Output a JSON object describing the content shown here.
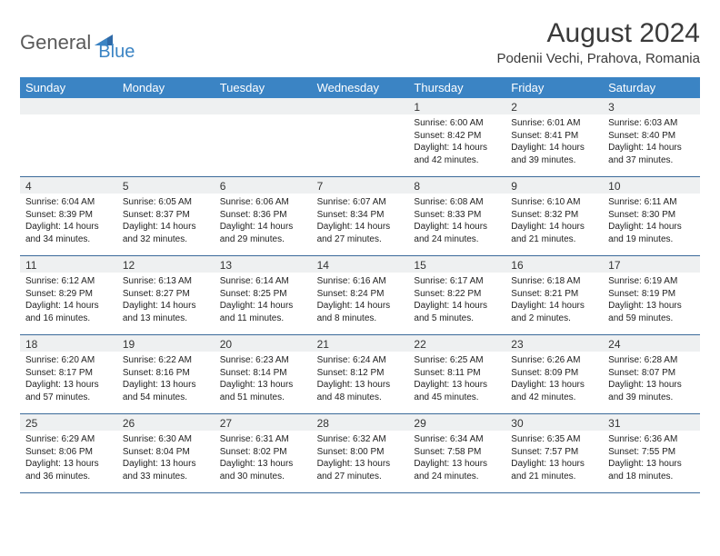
{
  "logo": {
    "text1": "General",
    "text2": "Blue"
  },
  "title": "August 2024",
  "location": "Podenii Vechi, Prahova, Romania",
  "colors": {
    "header_bg": "#3b84c4",
    "header_text": "#ffffff",
    "daynum_bg": "#eef0f1",
    "week_border": "#3b6a9a",
    "logo_gray": "#5a5a5a",
    "logo_blue": "#3b84c4",
    "title_color": "#3a3a3a"
  },
  "day_names": [
    "Sunday",
    "Monday",
    "Tuesday",
    "Wednesday",
    "Thursday",
    "Friday",
    "Saturday"
  ],
  "weeks": [
    [
      {
        "n": "",
        "sr": "",
        "ss": "",
        "dl": ""
      },
      {
        "n": "",
        "sr": "",
        "ss": "",
        "dl": ""
      },
      {
        "n": "",
        "sr": "",
        "ss": "",
        "dl": ""
      },
      {
        "n": "",
        "sr": "",
        "ss": "",
        "dl": ""
      },
      {
        "n": "1",
        "sr": "Sunrise: 6:00 AM",
        "ss": "Sunset: 8:42 PM",
        "dl": "Daylight: 14 hours and 42 minutes."
      },
      {
        "n": "2",
        "sr": "Sunrise: 6:01 AM",
        "ss": "Sunset: 8:41 PM",
        "dl": "Daylight: 14 hours and 39 minutes."
      },
      {
        "n": "3",
        "sr": "Sunrise: 6:03 AM",
        "ss": "Sunset: 8:40 PM",
        "dl": "Daylight: 14 hours and 37 minutes."
      }
    ],
    [
      {
        "n": "4",
        "sr": "Sunrise: 6:04 AM",
        "ss": "Sunset: 8:39 PM",
        "dl": "Daylight: 14 hours and 34 minutes."
      },
      {
        "n": "5",
        "sr": "Sunrise: 6:05 AM",
        "ss": "Sunset: 8:37 PM",
        "dl": "Daylight: 14 hours and 32 minutes."
      },
      {
        "n": "6",
        "sr": "Sunrise: 6:06 AM",
        "ss": "Sunset: 8:36 PM",
        "dl": "Daylight: 14 hours and 29 minutes."
      },
      {
        "n": "7",
        "sr": "Sunrise: 6:07 AM",
        "ss": "Sunset: 8:34 PM",
        "dl": "Daylight: 14 hours and 27 minutes."
      },
      {
        "n": "8",
        "sr": "Sunrise: 6:08 AM",
        "ss": "Sunset: 8:33 PM",
        "dl": "Daylight: 14 hours and 24 minutes."
      },
      {
        "n": "9",
        "sr": "Sunrise: 6:10 AM",
        "ss": "Sunset: 8:32 PM",
        "dl": "Daylight: 14 hours and 21 minutes."
      },
      {
        "n": "10",
        "sr": "Sunrise: 6:11 AM",
        "ss": "Sunset: 8:30 PM",
        "dl": "Daylight: 14 hours and 19 minutes."
      }
    ],
    [
      {
        "n": "11",
        "sr": "Sunrise: 6:12 AM",
        "ss": "Sunset: 8:29 PM",
        "dl": "Daylight: 14 hours and 16 minutes."
      },
      {
        "n": "12",
        "sr": "Sunrise: 6:13 AM",
        "ss": "Sunset: 8:27 PM",
        "dl": "Daylight: 14 hours and 13 minutes."
      },
      {
        "n": "13",
        "sr": "Sunrise: 6:14 AM",
        "ss": "Sunset: 8:25 PM",
        "dl": "Daylight: 14 hours and 11 minutes."
      },
      {
        "n": "14",
        "sr": "Sunrise: 6:16 AM",
        "ss": "Sunset: 8:24 PM",
        "dl": "Daylight: 14 hours and 8 minutes."
      },
      {
        "n": "15",
        "sr": "Sunrise: 6:17 AM",
        "ss": "Sunset: 8:22 PM",
        "dl": "Daylight: 14 hours and 5 minutes."
      },
      {
        "n": "16",
        "sr": "Sunrise: 6:18 AM",
        "ss": "Sunset: 8:21 PM",
        "dl": "Daylight: 14 hours and 2 minutes."
      },
      {
        "n": "17",
        "sr": "Sunrise: 6:19 AM",
        "ss": "Sunset: 8:19 PM",
        "dl": "Daylight: 13 hours and 59 minutes."
      }
    ],
    [
      {
        "n": "18",
        "sr": "Sunrise: 6:20 AM",
        "ss": "Sunset: 8:17 PM",
        "dl": "Daylight: 13 hours and 57 minutes."
      },
      {
        "n": "19",
        "sr": "Sunrise: 6:22 AM",
        "ss": "Sunset: 8:16 PM",
        "dl": "Daylight: 13 hours and 54 minutes."
      },
      {
        "n": "20",
        "sr": "Sunrise: 6:23 AM",
        "ss": "Sunset: 8:14 PM",
        "dl": "Daylight: 13 hours and 51 minutes."
      },
      {
        "n": "21",
        "sr": "Sunrise: 6:24 AM",
        "ss": "Sunset: 8:12 PM",
        "dl": "Daylight: 13 hours and 48 minutes."
      },
      {
        "n": "22",
        "sr": "Sunrise: 6:25 AM",
        "ss": "Sunset: 8:11 PM",
        "dl": "Daylight: 13 hours and 45 minutes."
      },
      {
        "n": "23",
        "sr": "Sunrise: 6:26 AM",
        "ss": "Sunset: 8:09 PM",
        "dl": "Daylight: 13 hours and 42 minutes."
      },
      {
        "n": "24",
        "sr": "Sunrise: 6:28 AM",
        "ss": "Sunset: 8:07 PM",
        "dl": "Daylight: 13 hours and 39 minutes."
      }
    ],
    [
      {
        "n": "25",
        "sr": "Sunrise: 6:29 AM",
        "ss": "Sunset: 8:06 PM",
        "dl": "Daylight: 13 hours and 36 minutes."
      },
      {
        "n": "26",
        "sr": "Sunrise: 6:30 AM",
        "ss": "Sunset: 8:04 PM",
        "dl": "Daylight: 13 hours and 33 minutes."
      },
      {
        "n": "27",
        "sr": "Sunrise: 6:31 AM",
        "ss": "Sunset: 8:02 PM",
        "dl": "Daylight: 13 hours and 30 minutes."
      },
      {
        "n": "28",
        "sr": "Sunrise: 6:32 AM",
        "ss": "Sunset: 8:00 PM",
        "dl": "Daylight: 13 hours and 27 minutes."
      },
      {
        "n": "29",
        "sr": "Sunrise: 6:34 AM",
        "ss": "Sunset: 7:58 PM",
        "dl": "Daylight: 13 hours and 24 minutes."
      },
      {
        "n": "30",
        "sr": "Sunrise: 6:35 AM",
        "ss": "Sunset: 7:57 PM",
        "dl": "Daylight: 13 hours and 21 minutes."
      },
      {
        "n": "31",
        "sr": "Sunrise: 6:36 AM",
        "ss": "Sunset: 7:55 PM",
        "dl": "Daylight: 13 hours and 18 minutes."
      }
    ]
  ]
}
